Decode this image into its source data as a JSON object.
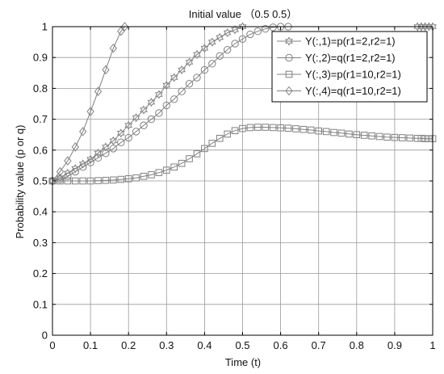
{
  "chart_data": {
    "type": "line",
    "title": "Initial value （0.5  0.5）",
    "xlabel": "Time (t)",
    "ylabel": "Probability value (p or q)",
    "xlim": [
      0,
      1
    ],
    "ylim": [
      0,
      1
    ],
    "xticks": [
      "0",
      "0.1",
      "0.2",
      "0.3",
      "0.4",
      "0.5",
      "0.6",
      "0.7",
      "0.8",
      "0.9",
      "1"
    ],
    "yticks": [
      "0",
      "0.1",
      "0.2",
      "0.3",
      "0.4",
      "0.5",
      "0.6",
      "0.7",
      "0.8",
      "0.9",
      "1"
    ],
    "grid": true,
    "legend_position": "top-right",
    "line_color": "#808080",
    "series": [
      {
        "name": "Y(:,1)=p(r1=2,r2=1)",
        "marker": "hexagram",
        "x": [
          0,
          0.02,
          0.04,
          0.06,
          0.08,
          0.1,
          0.12,
          0.14,
          0.16,
          0.18,
          0.2,
          0.22,
          0.24,
          0.26,
          0.28,
          0.3,
          0.32,
          0.34,
          0.36,
          0.38,
          0.4,
          0.42,
          0.44,
          0.46,
          0.48,
          0.5,
          0.96,
          0.97,
          0.98,
          0.99,
          1.0
        ],
        "y": [
          0.5,
          0.51,
          0.525,
          0.54,
          0.555,
          0.57,
          0.59,
          0.61,
          0.63,
          0.655,
          0.68,
          0.705,
          0.73,
          0.755,
          0.78,
          0.81,
          0.835,
          0.86,
          0.885,
          0.91,
          0.93,
          0.95,
          0.965,
          0.98,
          0.99,
          1.0,
          1.0,
          1.0,
          1.0,
          1.0,
          1.0
        ]
      },
      {
        "name": "Y(:,2)=q(r1=2,r2=1)",
        "marker": "circle",
        "x": [
          0,
          0.02,
          0.04,
          0.06,
          0.08,
          0.1,
          0.12,
          0.14,
          0.16,
          0.18,
          0.2,
          0.22,
          0.24,
          0.26,
          0.28,
          0.3,
          0.32,
          0.34,
          0.36,
          0.38,
          0.4,
          0.42,
          0.44,
          0.46,
          0.48,
          0.5,
          0.52,
          0.54,
          0.56,
          0.58,
          0.6,
          0.62
        ],
        "y": [
          0.5,
          0.505,
          0.515,
          0.53,
          0.545,
          0.56,
          0.575,
          0.59,
          0.605,
          0.625,
          0.64,
          0.66,
          0.68,
          0.7,
          0.72,
          0.745,
          0.765,
          0.79,
          0.815,
          0.835,
          0.86,
          0.88,
          0.905,
          0.925,
          0.945,
          0.96,
          0.975,
          0.985,
          0.993,
          0.998,
          1.0,
          1.0
        ]
      },
      {
        "name": "Y(:,3)=p(r1=10,r2=1)",
        "marker": "square",
        "x": [
          0,
          0.02,
          0.04,
          0.06,
          0.08,
          0.1,
          0.12,
          0.14,
          0.16,
          0.18,
          0.2,
          0.22,
          0.24,
          0.26,
          0.28,
          0.3,
          0.32,
          0.34,
          0.36,
          0.38,
          0.4,
          0.42,
          0.44,
          0.46,
          0.48,
          0.5,
          0.52,
          0.54,
          0.56,
          0.58,
          0.6,
          0.62,
          0.64,
          0.66,
          0.68,
          0.7,
          0.72,
          0.74,
          0.76,
          0.78,
          0.8,
          0.82,
          0.84,
          0.86,
          0.88,
          0.9,
          0.92,
          0.94,
          0.96,
          0.97,
          0.98,
          0.99,
          1.0
        ],
        "y": [
          0.5,
          0.5,
          0.5,
          0.5,
          0.5,
          0.5,
          0.501,
          0.502,
          0.503,
          0.505,
          0.507,
          0.51,
          0.515,
          0.52,
          0.527,
          0.535,
          0.545,
          0.557,
          0.572,
          0.588,
          0.605,
          0.622,
          0.638,
          0.652,
          0.663,
          0.67,
          0.673,
          0.674,
          0.674,
          0.673,
          0.672,
          0.671,
          0.669,
          0.667,
          0.665,
          0.662,
          0.66,
          0.657,
          0.655,
          0.652,
          0.65,
          0.648,
          0.646,
          0.644,
          0.642,
          0.641,
          0.64,
          0.639,
          0.638,
          0.638,
          0.637,
          0.637,
          0.637
        ]
      },
      {
        "name": "Y(:,4)=q(r1=10,r2=1)",
        "marker": "diamond",
        "x": [
          0,
          0.02,
          0.04,
          0.06,
          0.08,
          0.1,
          0.12,
          0.14,
          0.16,
          0.18,
          0.19
        ],
        "y": [
          0.5,
          0.53,
          0.565,
          0.61,
          0.66,
          0.725,
          0.79,
          0.86,
          0.93,
          0.985,
          1.0
        ]
      }
    ]
  }
}
